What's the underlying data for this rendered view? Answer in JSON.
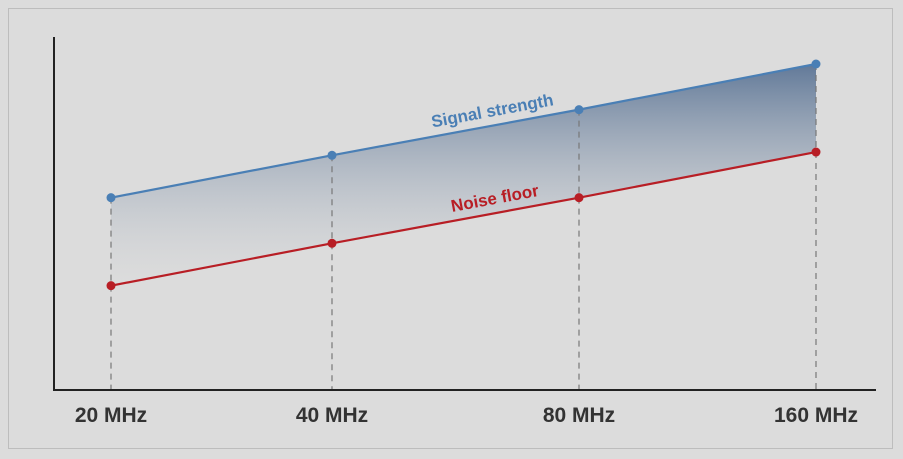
{
  "chart_data": {
    "type": "line",
    "title": "",
    "xlabel": "",
    "ylabel": "",
    "categories": [
      "20 MHz",
      "40 MHz",
      "80 MHz",
      "160 MHz"
    ],
    "x_scale": "log",
    "y_ticks_shown": false,
    "grid": "dashed vertical drop lines at each category",
    "shaded_region": "between Signal strength and Noise floor",
    "ylim": [
      0,
      100
    ],
    "series": [
      {
        "name": "Signal strength",
        "values": [
          59,
          72,
          86,
          100
        ],
        "color": "#4a7fb5"
      },
      {
        "name": "Noise floor",
        "values": [
          32,
          45,
          59,
          73
        ],
        "color": "#b81e25"
      }
    ]
  }
}
